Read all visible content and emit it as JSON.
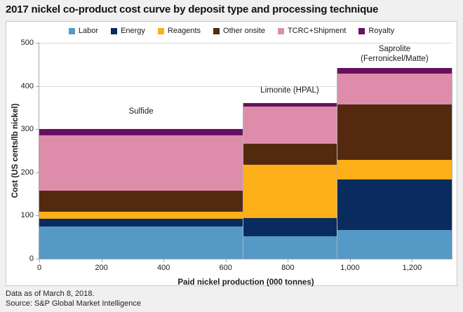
{
  "title": "2017 nickel co-product cost curve by deposit type and processing technique",
  "footer": {
    "line1": "Data as of March 8, 2018.",
    "line2": "Source: S&P Global Market Intelligence"
  },
  "chart_data": {
    "type": "bar",
    "subtype": "variable-width-stacked-cost-curve",
    "title": "2017 nickel co-product cost curve by deposit type and processing technique",
    "xlabel": "Paid nickel production (000 tonnes)",
    "ylabel": "Cost (US cents/lb nickel)",
    "xlim": [
      0,
      1330
    ],
    "ylim": [
      0,
      500
    ],
    "x_ticks": [
      {
        "value": 0,
        "label": "0"
      },
      {
        "value": 200,
        "label": "200"
      },
      {
        "value": 400,
        "label": "400"
      },
      {
        "value": 600,
        "label": "600"
      },
      {
        "value": 800,
        "label": "800"
      },
      {
        "value": 1000,
        "label": "1,000"
      },
      {
        "value": 1200,
        "label": "1,200"
      }
    ],
    "y_ticks": [
      {
        "value": 0,
        "label": "0"
      },
      {
        "value": 100,
        "label": "100"
      },
      {
        "value": 200,
        "label": "200"
      },
      {
        "value": 300,
        "label": "300"
      },
      {
        "value": 400,
        "label": "400"
      },
      {
        "value": 500,
        "label": "500"
      }
    ],
    "grid": "horizontal",
    "legend_position": "top",
    "categories": [
      {
        "label": "Sulfide",
        "x_start": 0,
        "x_end": 655,
        "total": 300,
        "label_gap": 18
      },
      {
        "label": "Limonite (HPAL)",
        "x_start": 655,
        "x_end": 957,
        "total": 360,
        "label_gap": 11
      },
      {
        "label": "Saprolite\n(Ferronickel/Matte)",
        "x_start": 957,
        "x_end": 1330,
        "total": 442,
        "label_gap": 6
      }
    ],
    "series": [
      {
        "name": "Labor",
        "color": "#5599C6",
        "values": [
          74,
          52,
          66
        ]
      },
      {
        "name": "Energy",
        "color": "#0A2B5E",
        "values": [
          19,
          42,
          117
        ]
      },
      {
        "name": "Reagents",
        "color": "#FCAF17",
        "values": [
          15,
          124,
          46
        ]
      },
      {
        "name": "Other onsite",
        "color": "#542A0F",
        "values": [
          50,
          49,
          128
        ]
      },
      {
        "name": "TCRC+Shipment",
        "color": "#DD8DA9",
        "values": [
          127,
          85,
          71
        ]
      },
      {
        "name": "Royalty",
        "color": "#690F5E",
        "values": [
          15,
          8,
          14
        ]
      }
    ],
    "colors": {
      "gridline": "#d9d9d9",
      "axis": "#a6a6a6",
      "bar_divider": "#b3b3b3"
    }
  }
}
